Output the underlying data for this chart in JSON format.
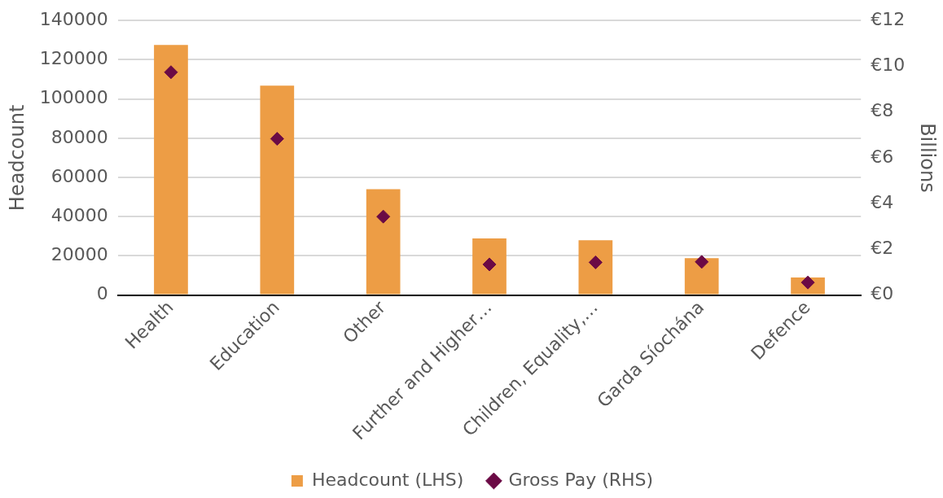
{
  "chart_data": {
    "type": "bar",
    "ylabel": "Headcount",
    "y2label": "Billions",
    "categories": [
      "Health",
      "Education",
      "Other",
      "Further and Higher…",
      "Children, Equality,…",
      "Garda Síochána",
      "Defence"
    ],
    "series": [
      {
        "name": "Headcount (LHS)",
        "color": "#ed9d45",
        "values": [
          127500,
          106800,
          54000,
          28900,
          28000,
          18800,
          9000
        ]
      },
      {
        "name": "Gross Pay (RHS)",
        "type": "scatter",
        "axis": "y2",
        "marker": "diamond",
        "color": "#6b0a45",
        "values": [
          9.74,
          6.83,
          3.43,
          1.34,
          1.43,
          1.45,
          0.55
        ]
      }
    ],
    "ylim": [
      0,
      140000
    ],
    "yticks": [
      0,
      20000,
      40000,
      60000,
      80000,
      100000,
      120000,
      140000
    ],
    "y2lim": [
      0,
      12
    ],
    "y2ticks": [
      {
        "value": 0,
        "label": "€0"
      },
      {
        "value": 2,
        "label": "€2"
      },
      {
        "value": 4,
        "label": "€4"
      },
      {
        "value": 6,
        "label": "€6"
      },
      {
        "value": 8,
        "label": "€8"
      },
      {
        "value": 10,
        "label": "€10"
      },
      {
        "value": 12,
        "label": "€12"
      }
    ],
    "grid": "y",
    "legend": "bottom"
  }
}
